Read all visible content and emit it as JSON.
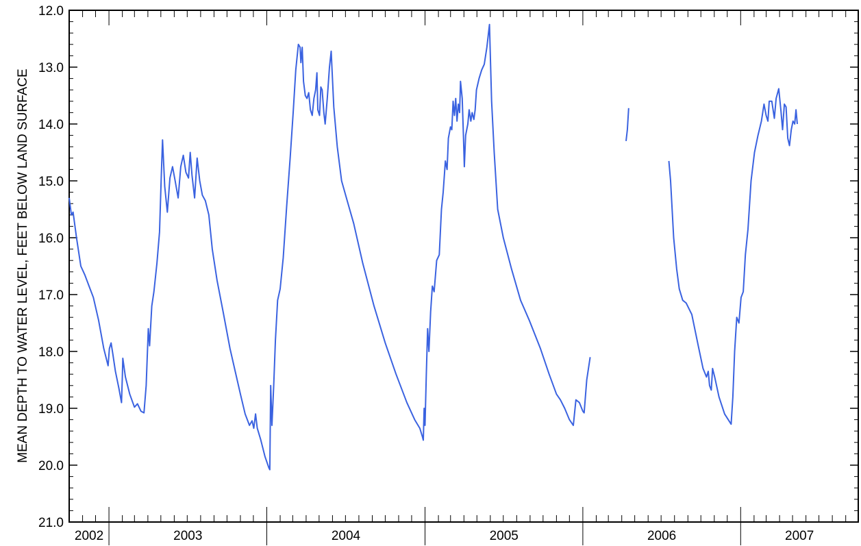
{
  "chart_data": {
    "type": "line",
    "title": "",
    "xlabel": "",
    "ylabel": "MEAN DEPTH TO WATER LEVEL, FEET BELOW LAND SURFACE",
    "y_inverted": true,
    "ylim": [
      12.0,
      21.0
    ],
    "yticks": [
      "12.0",
      "13.0",
      "14.0",
      "15.0",
      "16.0",
      "17.0",
      "18.0",
      "19.0",
      "20.0",
      "21.0"
    ],
    "xlim": [
      "2002-10-01",
      "2007-09-30"
    ],
    "year_labels": [
      "2002",
      "2003",
      "2004",
      "2005",
      "2006",
      "2007"
    ],
    "grid": false,
    "line_color": "#3a62e0",
    "series": [
      {
        "segments": [
          [
            [
              "2002-10-01",
              15.3
            ],
            [
              "2002-10-06",
              15.6
            ],
            [
              "2002-10-10",
              15.55
            ],
            [
              "2002-10-18",
              16.0
            ],
            [
              "2002-10-28",
              16.5
            ],
            [
              "2002-11-06",
              16.65
            ],
            [
              "2002-11-16",
              16.85
            ],
            [
              "2002-11-26",
              17.05
            ],
            [
              "2002-12-08",
              17.45
            ],
            [
              "2002-12-20",
              17.95
            ],
            [
              "2002-12-30",
              18.25
            ],
            [
              "2003-01-02",
              17.95
            ],
            [
              "2003-01-06",
              17.85
            ],
            [
              "2003-01-10",
              18.05
            ],
            [
              "2003-01-16",
              18.35
            ],
            [
              "2003-01-24",
              18.65
            ],
            [
              "2003-01-30",
              18.9
            ],
            [
              "2003-02-01",
              18.45
            ],
            [
              "2003-02-02",
              18.12
            ],
            [
              "2003-02-08",
              18.45
            ],
            [
              "2003-02-18",
              18.75
            ],
            [
              "2003-03-01",
              18.98
            ],
            [
              "2003-03-08",
              18.92
            ],
            [
              "2003-03-16",
              19.05
            ],
            [
              "2003-03-23",
              19.08
            ],
            [
              "2003-03-28",
              18.6
            ],
            [
              "2003-04-02",
              17.6
            ],
            [
              "2003-04-05",
              17.9
            ],
            [
              "2003-04-10",
              17.2
            ],
            [
              "2003-04-15",
              16.95
            ],
            [
              "2003-04-22",
              16.45
            ],
            [
              "2003-04-28",
              15.9
            ],
            [
              "2003-05-02",
              14.9
            ],
            [
              "2003-05-05",
              14.28
            ],
            [
              "2003-05-10",
              15.1
            ],
            [
              "2003-05-16",
              15.55
            ],
            [
              "2003-05-22",
              14.95
            ],
            [
              "2003-05-28",
              14.75
            ],
            [
              "2003-06-03",
              15.0
            ],
            [
              "2003-06-10",
              15.3
            ],
            [
              "2003-06-16",
              14.75
            ],
            [
              "2003-06-22",
              14.55
            ],
            [
              "2003-06-28",
              14.85
            ],
            [
              "2003-07-04",
              14.95
            ],
            [
              "2003-07-08",
              14.5
            ],
            [
              "2003-07-12",
              14.9
            ],
            [
              "2003-07-18",
              15.3
            ],
            [
              "2003-07-24",
              14.6
            ],
            [
              "2003-07-30",
              15.0
            ],
            [
              "2003-08-05",
              15.25
            ],
            [
              "2003-08-12",
              15.35
            ],
            [
              "2003-08-20",
              15.6
            ],
            [
              "2003-08-28",
              16.2
            ],
            [
              "2003-09-08",
              16.75
            ],
            [
              "2003-09-22",
              17.3
            ],
            [
              "2003-10-08",
              17.95
            ],
            [
              "2003-10-20",
              18.35
            ],
            [
              "2003-11-01",
              18.75
            ],
            [
              "2003-11-12",
              19.1
            ],
            [
              "2003-11-22",
              19.3
            ],
            [
              "2003-11-28",
              19.22
            ],
            [
              "2003-12-02",
              19.35
            ],
            [
              "2003-12-06",
              19.1
            ],
            [
              "2003-12-10",
              19.35
            ],
            [
              "2003-12-18",
              19.55
            ],
            [
              "2003-12-28",
              19.85
            ],
            [
              "2004-01-06",
              20.05
            ],
            [
              "2004-01-08",
              20.08
            ],
            [
              "2004-01-10",
              18.6
            ],
            [
              "2004-01-13",
              19.3
            ],
            [
              "2004-01-17",
              18.6
            ],
            [
              "2004-01-21",
              17.8
            ],
            [
              "2004-01-26",
              17.1
            ],
            [
              "2004-02-01",
              16.9
            ],
            [
              "2004-02-08",
              16.35
            ],
            [
              "2004-02-16",
              15.45
            ],
            [
              "2004-02-24",
              14.6
            ],
            [
              "2004-03-02",
              13.8
            ],
            [
              "2004-03-08",
              13.05
            ],
            [
              "2004-03-14",
              12.6
            ],
            [
              "2004-03-18",
              12.65
            ],
            [
              "2004-03-20",
              12.92
            ],
            [
              "2004-03-23",
              12.65
            ],
            [
              "2004-03-26",
              13.25
            ],
            [
              "2004-03-30",
              13.5
            ],
            [
              "2004-04-03",
              13.55
            ],
            [
              "2004-04-07",
              13.45
            ],
            [
              "2004-04-11",
              13.75
            ],
            [
              "2004-04-15",
              13.85
            ],
            [
              "2004-04-19",
              13.55
            ],
            [
              "2004-04-23",
              13.4
            ],
            [
              "2004-04-26",
              13.1
            ],
            [
              "2004-04-28",
              13.75
            ],
            [
              "2004-05-02",
              13.85
            ],
            [
              "2004-05-05",
              13.35
            ],
            [
              "2004-05-08",
              13.4
            ],
            [
              "2004-05-12",
              13.8
            ],
            [
              "2004-05-15",
              14.0
            ],
            [
              "2004-05-20",
              13.55
            ],
            [
              "2004-05-25",
              13.0
            ],
            [
              "2004-05-29",
              12.72
            ],
            [
              "2004-06-04",
              13.7
            ],
            [
              "2004-06-12",
              14.4
            ],
            [
              "2004-06-22",
              15.0
            ],
            [
              "2004-07-05",
              15.35
            ],
            [
              "2004-07-20",
              15.75
            ],
            [
              "2004-08-10",
              16.45
            ],
            [
              "2004-09-05",
              17.2
            ],
            [
              "2004-10-01",
              17.85
            ],
            [
              "2004-10-26",
              18.4
            ],
            [
              "2004-11-20",
              18.9
            ],
            [
              "2004-12-08",
              19.2
            ],
            [
              "2004-12-20",
              19.35
            ],
            [
              "2004-12-26",
              19.5
            ],
            [
              "2004-12-28",
              19.56
            ],
            [
              "2004-12-30",
              19.0
            ],
            [
              "2005-01-01",
              19.3
            ],
            [
              "2005-01-04",
              18.4
            ],
            [
              "2005-01-07",
              17.6
            ],
            [
              "2005-01-10",
              18.0
            ],
            [
              "2005-01-14",
              17.3
            ],
            [
              "2005-01-18",
              16.85
            ],
            [
              "2005-01-22",
              16.95
            ],
            [
              "2005-01-28",
              16.4
            ],
            [
              "2005-02-03",
              16.3
            ],
            [
              "2005-02-08",
              15.5
            ],
            [
              "2005-02-12",
              15.2
            ],
            [
              "2005-02-17",
              14.65
            ],
            [
              "2005-02-21",
              14.8
            ],
            [
              "2005-02-24",
              14.25
            ],
            [
              "2005-03-01",
              14.05
            ],
            [
              "2005-03-04",
              14.1
            ],
            [
              "2005-03-07",
              13.6
            ],
            [
              "2005-03-10",
              13.85
            ],
            [
              "2005-03-13",
              13.55
            ],
            [
              "2005-03-16",
              13.95
            ],
            [
              "2005-03-19",
              13.65
            ],
            [
              "2005-03-22",
              13.8
            ],
            [
              "2005-03-24",
              13.25
            ],
            [
              "2005-03-28",
              13.55
            ],
            [
              "2005-03-31",
              14.25
            ],
            [
              "2005-04-02",
              14.75
            ],
            [
              "2005-04-05",
              14.2
            ],
            [
              "2005-04-10",
              14.0
            ],
            [
              "2005-04-13",
              13.75
            ],
            [
              "2005-04-17",
              13.95
            ],
            [
              "2005-04-20",
              13.8
            ],
            [
              "2005-04-24",
              13.92
            ],
            [
              "2005-04-27",
              13.75
            ],
            [
              "2005-04-30",
              13.4
            ],
            [
              "2005-05-06",
              13.2
            ],
            [
              "2005-05-12",
              13.05
            ],
            [
              "2005-05-18",
              12.95
            ],
            [
              "2005-05-24",
              12.65
            ],
            [
              "2005-05-30",
              12.25
            ],
            [
              "2005-06-04",
              13.6
            ],
            [
              "2005-06-10",
              14.5
            ],
            [
              "2005-06-18",
              15.5
            ],
            [
              "2005-07-01",
              16.0
            ],
            [
              "2005-07-20",
              16.55
            ],
            [
              "2005-08-10",
              17.1
            ],
            [
              "2005-08-30",
              17.45
            ],
            [
              "2005-09-25",
              17.95
            ],
            [
              "2005-10-15",
              18.4
            ],
            [
              "2005-11-01",
              18.75
            ],
            [
              "2005-11-10",
              18.85
            ],
            [
              "2005-11-20",
              19.0
            ],
            [
              "2005-12-01",
              19.2
            ],
            [
              "2005-12-10",
              19.3
            ],
            [
              "2005-12-16",
              18.85
            ],
            [
              "2005-12-24",
              18.9
            ],
            [
              "2006-01-01",
              19.05
            ],
            [
              "2006-01-04",
              19.08
            ],
            [
              "2006-01-10",
              18.5
            ],
            [
              "2006-01-18",
              18.1
            ]
          ],
          [
            [
              "2006-04-11",
              14.3
            ],
            [
              "2006-04-14",
              14.1
            ],
            [
              "2006-04-17",
              13.72
            ]
          ],
          [
            [
              "2006-07-19",
              14.65
            ],
            [
              "2006-07-23",
              15.0
            ],
            [
              "2006-07-30",
              16.0
            ],
            [
              "2006-08-06",
              16.55
            ],
            [
              "2006-08-12",
              16.9
            ],
            [
              "2006-08-20",
              17.1
            ],
            [
              "2006-08-28",
              17.15
            ],
            [
              "2006-09-10",
              17.35
            ],
            [
              "2006-09-25",
              17.9
            ],
            [
              "2006-10-06",
              18.3
            ],
            [
              "2006-10-14",
              18.45
            ],
            [
              "2006-10-18",
              18.35
            ],
            [
              "2006-10-21",
              18.6
            ],
            [
              "2006-10-25",
              18.68
            ],
            [
              "2006-10-28",
              18.3
            ],
            [
              "2006-11-02",
              18.45
            ],
            [
              "2006-11-12",
              18.8
            ],
            [
              "2006-11-25",
              19.1
            ],
            [
              "2006-12-05",
              19.22
            ],
            [
              "2006-12-10",
              19.28
            ],
            [
              "2006-12-14",
              18.8
            ],
            [
              "2006-12-18",
              18.0
            ],
            [
              "2006-12-23",
              17.4
            ],
            [
              "2006-12-28",
              17.5
            ],
            [
              "2007-01-02",
              17.05
            ],
            [
              "2007-01-07",
              16.95
            ],
            [
              "2007-01-12",
              16.3
            ],
            [
              "2007-01-18",
              15.85
            ],
            [
              "2007-01-25",
              15.0
            ],
            [
              "2007-02-02",
              14.5
            ],
            [
              "2007-02-10",
              14.2
            ],
            [
              "2007-02-18",
              13.95
            ],
            [
              "2007-02-24",
              13.65
            ],
            [
              "2007-03-01",
              13.85
            ],
            [
              "2007-03-05",
              13.95
            ],
            [
              "2007-03-08",
              13.6
            ],
            [
              "2007-03-14",
              13.6
            ],
            [
              "2007-03-20",
              13.9
            ],
            [
              "2007-03-24",
              13.55
            ],
            [
              "2007-03-30",
              13.38
            ],
            [
              "2007-04-04",
              13.75
            ],
            [
              "2007-04-08",
              14.1
            ],
            [
              "2007-04-12",
              13.65
            ],
            [
              "2007-04-16",
              13.7
            ],
            [
              "2007-04-20",
              14.25
            ],
            [
              "2007-04-24",
              14.38
            ],
            [
              "2007-04-28",
              14.1
            ],
            [
              "2007-05-02",
              13.95
            ],
            [
              "2007-05-06",
              14.0
            ],
            [
              "2007-05-09",
              13.75
            ],
            [
              "2007-05-12",
              14.0
            ]
          ]
        ]
      }
    ]
  }
}
